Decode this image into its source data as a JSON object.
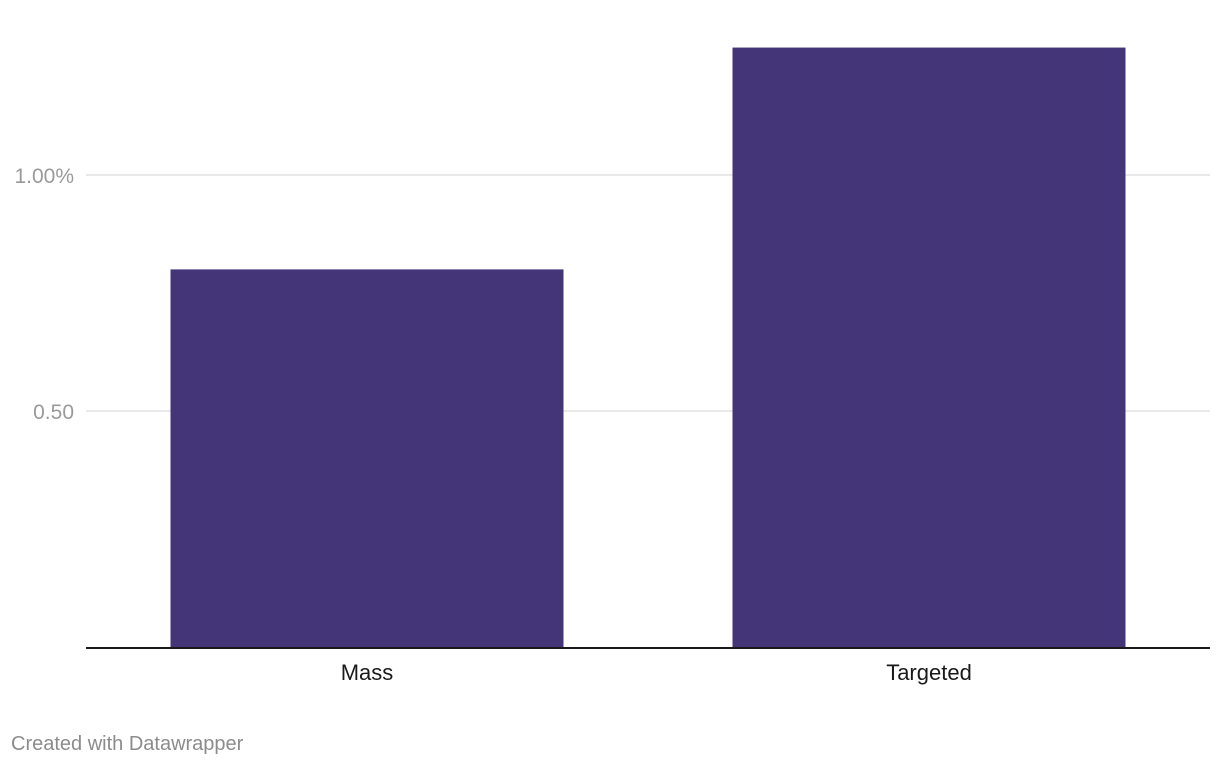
{
  "chart_data": {
    "type": "bar",
    "categories": [
      "Mass",
      "Targeted"
    ],
    "series": [
      {
        "values": [
          0.8,
          1.27
        ]
      }
    ],
    "y_ticks": [
      {
        "value": 0.5,
        "label": "0.50"
      },
      {
        "value": 1.0,
        "label": "1.00%"
      }
    ],
    "ylim": [
      0,
      1.27
    ],
    "grid": true,
    "title": "",
    "xlabel": "",
    "ylabel": ""
  },
  "colors": {
    "bar": "#433578",
    "grid": "#e2e2e2",
    "baseline": "#1a1a1a"
  },
  "footer": {
    "credit": "Created with Datawrapper"
  }
}
